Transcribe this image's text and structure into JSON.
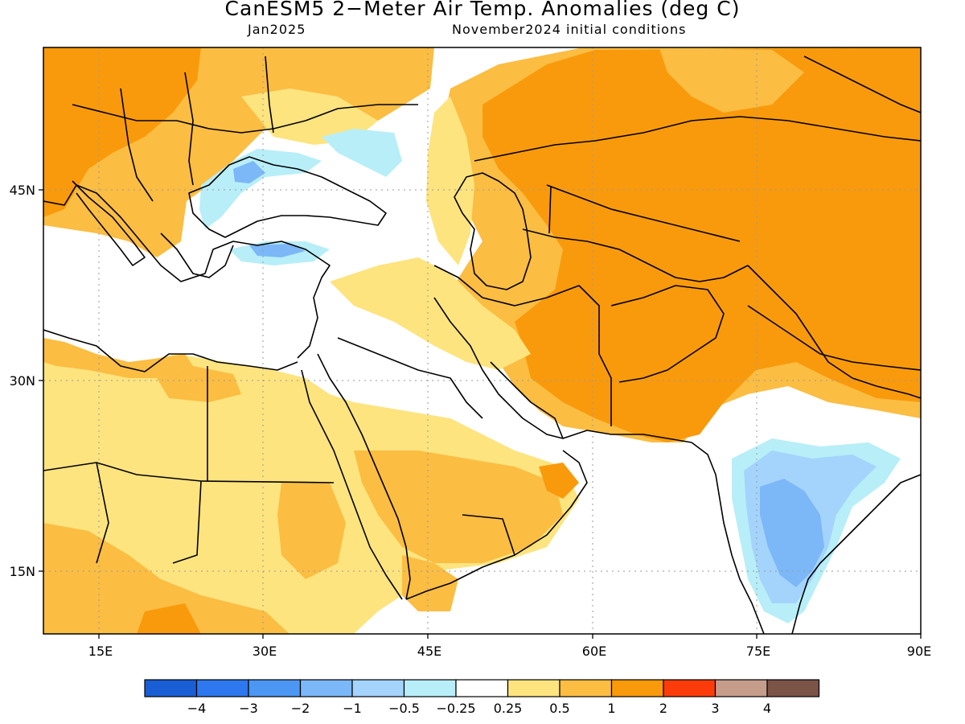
{
  "title": "CanESM5 2−Meter Air Temp. Anomalies (deg C)",
  "subtitle_left": "Jan2025",
  "subtitle_right": "November2024 initial conditions",
  "axes": {
    "lon_ticks": [
      "15E",
      "30E",
      "45E",
      "60E",
      "75E",
      "90E"
    ],
    "lat_ticks": [
      "45N",
      "30N",
      "15N"
    ]
  },
  "colorbar": {
    "colors": [
      "#1a5ed6",
      "#2d78ef",
      "#4c97f4",
      "#7cb7f8",
      "#a4d4fb",
      "#b8eef8",
      "#ffffff",
      "#fde47f",
      "#fbbd42",
      "#f99a0c",
      "#fb3c0a",
      "#c69c8b",
      "#7c5347"
    ],
    "labels": [
      "−4",
      "−3",
      "−2",
      "−1",
      "−0.5",
      "−0.25",
      "0.25",
      "0.5",
      "1",
      "2",
      "3",
      "4"
    ]
  },
  "chart_data": {
    "type": "heatmap",
    "variable": "2-Meter Air Temp. Anomalies (deg C)",
    "valid": "Jan2025",
    "initial_conditions": "November2024",
    "lon_range": [
      10,
      90
    ],
    "lat_range": [
      9,
      55
    ],
    "contour_levels": [
      -4,
      -3,
      -2,
      -1,
      -0.5,
      -0.25,
      0.25,
      0.5,
      1,
      2,
      3,
      4
    ],
    "grid": true
  }
}
